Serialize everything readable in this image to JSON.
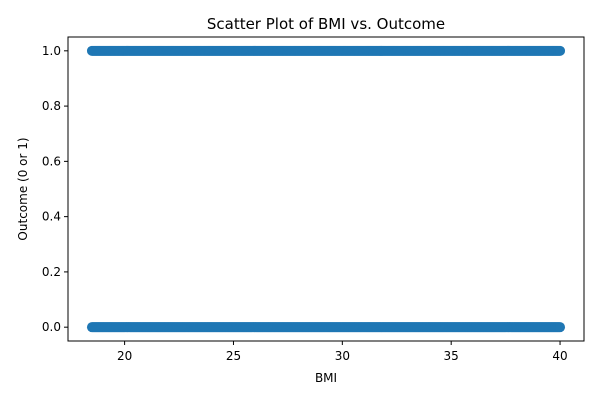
{
  "chart_data": {
    "type": "scatter",
    "title": "Scatter Plot of BMI vs. Outcome",
    "xlabel": "BMI",
    "ylabel": "Outcome (0 or 1)",
    "xlim": [
      17.4,
      41.1
    ],
    "ylim": [
      -0.05,
      1.05
    ],
    "x_ticks": [
      20,
      25,
      30,
      35,
      40
    ],
    "x_tick_labels": [
      "20",
      "25",
      "30",
      "35",
      "40"
    ],
    "y_ticks": [
      0.0,
      0.2,
      0.4,
      0.6,
      0.8,
      1.0
    ],
    "y_tick_labels": [
      "0.0",
      "0.2",
      "0.4",
      "0.6",
      "0.8",
      "1.0"
    ],
    "grid": false,
    "marker_color": "#1f77b4",
    "series": [
      {
        "x_range": [
          18.5,
          40.0
        ],
        "y_values": [
          0,
          1
        ]
      }
    ]
  }
}
